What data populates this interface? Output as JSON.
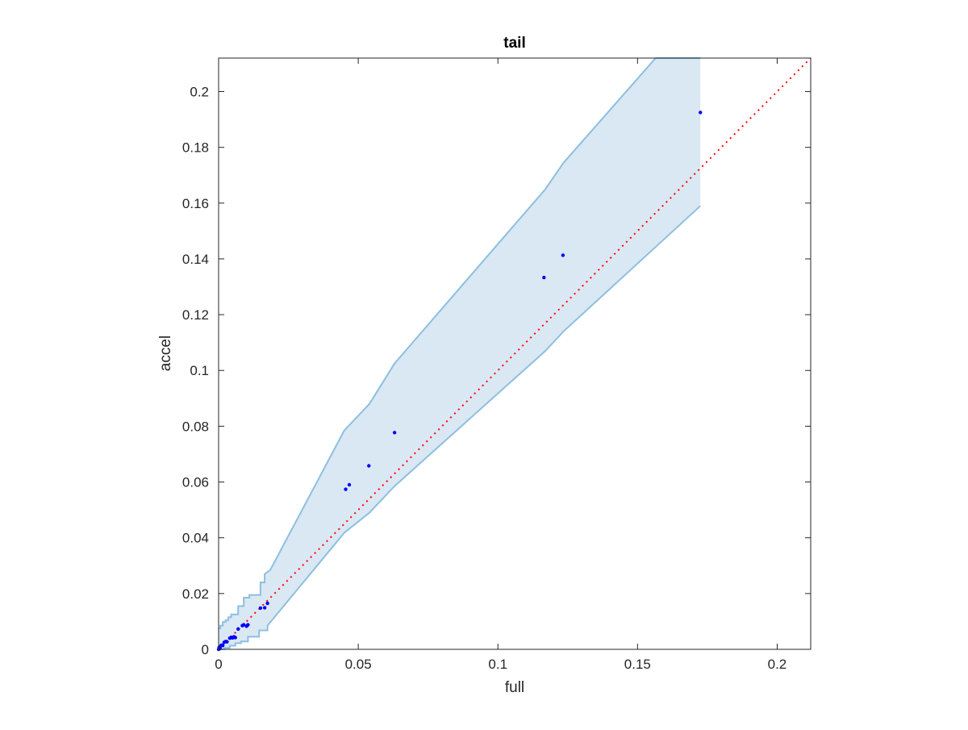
{
  "chart_data": {
    "type": "scatter",
    "title": "tail",
    "xlabel": "full",
    "ylabel": "accel",
    "xlim": [
      0,
      0.212
    ],
    "ylim": [
      0,
      0.212
    ],
    "xticks": [
      0,
      0.05,
      0.1,
      0.15,
      0.2
    ],
    "yticks": [
      0,
      0.02,
      0.04,
      0.06,
      0.08,
      0.1,
      0.12,
      0.14,
      0.16,
      0.18,
      0.2
    ],
    "x_tick_labels": [
      "0",
      "0.05",
      "0.1",
      "0.15",
      "0.2"
    ],
    "y_tick_labels": [
      "0",
      "0.02",
      "0.04",
      "0.06",
      "0.08",
      "0.1",
      "0.12",
      "0.14",
      "0.16",
      "0.18",
      "0.2"
    ],
    "grid": false,
    "legend": "none",
    "colors": {
      "points": "#0000ff",
      "reference_line": "#ff0000",
      "band_fill": "#dae8f4",
      "band_edge": "#8dbfdf",
      "axes": "#262626"
    },
    "reference_line": {
      "style": "dotted",
      "x": [
        0,
        0.212
      ],
      "y": [
        0,
        0.212
      ]
    },
    "band_upper": {
      "x": [
        0,
        0.0006,
        0.0006,
        0.0015,
        0.0015,
        0.0025,
        0.0025,
        0.0035,
        0.0035,
        0.0045,
        0.0045,
        0.007,
        0.007,
        0.009,
        0.009,
        0.011,
        0.011,
        0.015,
        0.015,
        0.0165,
        0.0165,
        0.0185,
        0.045,
        0.054,
        0.063,
        0.117,
        0.1235,
        0.1565,
        0.1725
      ],
      "y": [
        0.0075,
        0.0075,
        0.0085,
        0.0085,
        0.0098,
        0.0098,
        0.0105,
        0.0105,
        0.0115,
        0.0115,
        0.0125,
        0.0125,
        0.0155,
        0.0155,
        0.0185,
        0.0185,
        0.0195,
        0.0195,
        0.024,
        0.024,
        0.027,
        0.0285,
        0.0785,
        0.088,
        0.1025,
        0.165,
        0.1745,
        0.212,
        0.212
      ]
    },
    "band_lower": {
      "x": [
        0,
        0.002,
        0.002,
        0.004,
        0.004,
        0.006,
        0.006,
        0.008,
        0.008,
        0.0105,
        0.0105,
        0.0145,
        0.0145,
        0.0175,
        0.0175,
        0.045,
        0.054,
        0.063,
        0.117,
        0.1235,
        0.1725
      ],
      "y": [
        0,
        0,
        0.0005,
        0.0005,
        0.0013,
        0.0013,
        0.0022,
        0.0022,
        0.0028,
        0.0028,
        0.0045,
        0.0045,
        0.0068,
        0.0068,
        0.0085,
        0.0418,
        0.049,
        0.0585,
        0.107,
        0.114,
        0.159
      ]
    },
    "points": {
      "x": [
        0,
        0.0002,
        0.0005,
        0.0008,
        0.001,
        0.0015,
        0.002,
        0.0025,
        0.003,
        0.004,
        0.0045,
        0.005,
        0.0055,
        0.006,
        0.007,
        0.0085,
        0.009,
        0.01,
        0.0105,
        0.015,
        0.0165,
        0.0175,
        0.0455,
        0.0468,
        0.0538,
        0.063,
        0.1165,
        0.1233,
        0.1725
      ],
      "y": [
        0,
        0.0007,
        0.0003,
        0.0012,
        0.0015,
        0.0014,
        0.0025,
        0.0028,
        0.0027,
        0.004,
        0.0043,
        0.0041,
        0.0045,
        0.0042,
        0.0073,
        0.0085,
        0.0088,
        0.0083,
        0.0088,
        0.0148,
        0.0149,
        0.0165,
        0.0574,
        0.059,
        0.0658,
        0.0777,
        0.1333,
        0.1413,
        0.1925
      ]
    }
  }
}
